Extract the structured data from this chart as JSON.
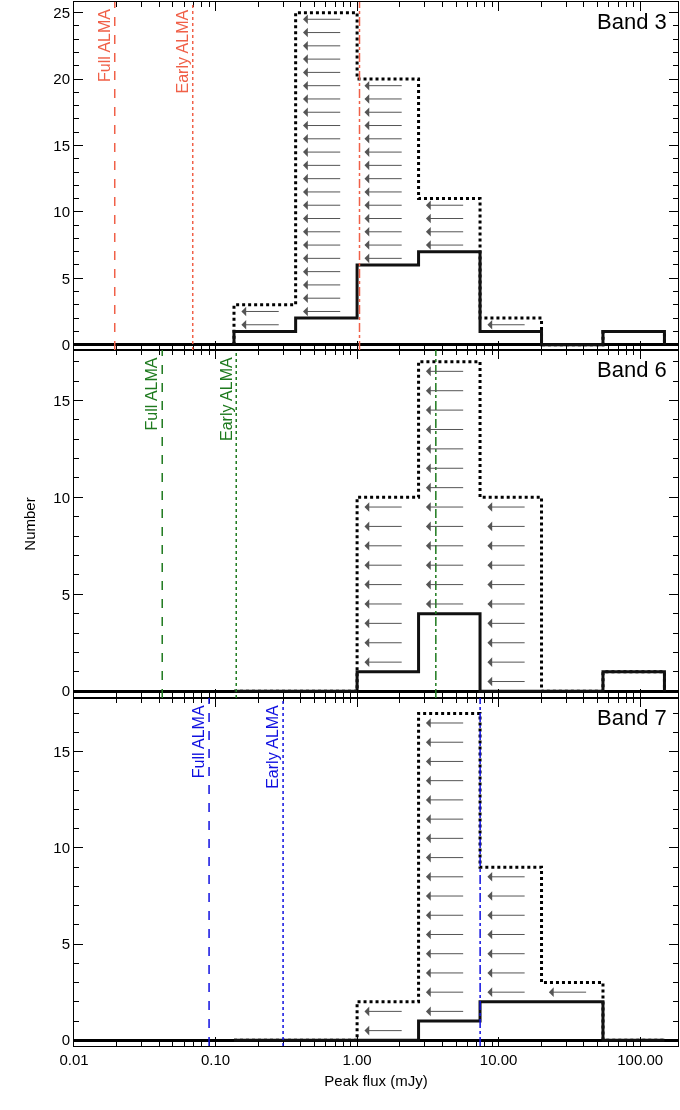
{
  "chart_data": [
    {
      "type": "histogram",
      "annotations": [
        "Band 3"
      ],
      "bins": [
        0.135,
        0.368,
        1.0,
        2.718,
        7.389,
        20.09,
        54.6,
        148.4
      ],
      "log": "x",
      "tick_labels": "y",
      "xlim": [
        0.01,
        185
      ],
      "ylim": [
        -0.4,
        25.8
      ],
      "yticks": [
        0,
        5,
        10,
        15,
        20,
        25
      ],
      "series": [
        {
          "color": "#000000",
          "line_style": "dotted",
          "values": [
            3,
            25,
            20,
            11,
            2,
            0,
            1
          ]
        },
        {
          "color": "#111111",
          "line_style": "solid",
          "values": [
            1,
            2,
            6,
            7,
            1,
            0,
            1
          ]
        }
      ],
      "ref_lines": [
        {
          "axis": "x",
          "value": 0.0194,
          "label": "Full ALMA",
          "color": "#f06048",
          "line_style": "dashed"
        },
        {
          "axis": "x",
          "value": 0.069,
          "label": "Early ALMA",
          "color": "#f06048",
          "line_style": "dotted"
        },
        {
          "axis": "x",
          "value": 1.04,
          "color": "#f06048",
          "line_style": "dashdot"
        }
      ]
    },
    {
      "type": "histogram",
      "ylabel": "Number",
      "annotations": [
        "Band 6"
      ],
      "bins": [
        0.135,
        0.368,
        1.0,
        2.718,
        7.389,
        20.09,
        54.6,
        148.4
      ],
      "log": "x",
      "tick_labels": "y",
      "xlim": [
        0.01,
        185
      ],
      "ylim": [
        -0.35,
        17.6
      ],
      "yticks": [
        0,
        5,
        10,
        15
      ],
      "series": [
        {
          "color": "#000000",
          "line_style": "dotted",
          "values": [
            0,
            0,
            10,
            17,
            10,
            0,
            1
          ]
        },
        {
          "color": "#111111",
          "line_style": "solid",
          "values": [
            0,
            0,
            1,
            4,
            0,
            0,
            1
          ]
        }
      ],
      "ref_lines": [
        {
          "axis": "x",
          "value": 0.042,
          "label": "Full ALMA",
          "color": "#1e7a1e",
          "line_style": "dashed"
        },
        {
          "axis": "x",
          "value": 0.14,
          "label": "Early ALMA",
          "color": "#1e7a1e",
          "line_style": "dotted"
        },
        {
          "axis": "x",
          "value": 3.6,
          "color": "#1e7a1e",
          "line_style": "dashdot"
        }
      ]
    },
    {
      "type": "histogram",
      "xlabel": "Peak flux (mJy)",
      "annotations": [
        "Band 7"
      ],
      "bins": [
        0.135,
        0.368,
        1.0,
        2.718,
        7.389,
        20.09,
        54.6,
        148.4
      ],
      "log": "x",
      "xlim": [
        0.01,
        185
      ],
      "xticks": [
        0.01,
        {
          "value": 0.1,
          "label": "0.10"
        },
        {
          "value": 1,
          "label": "1.00"
        },
        {
          "value": 10,
          "label": "10.00"
        },
        {
          "value": 100,
          "label": "100.00"
        }
      ],
      "ylim": [
        -0.3,
        17.8
      ],
      "yticks": [
        0,
        5,
        10,
        15
      ],
      "series": [
        {
          "color": "#000000",
          "line_style": "dotted",
          "values": [
            0,
            0,
            2,
            17,
            9,
            3,
            0
          ]
        },
        {
          "color": "#111111",
          "line_style": "solid",
          "values": [
            0,
            0,
            0,
            1,
            2,
            2,
            0
          ]
        }
      ],
      "ref_lines": [
        {
          "axis": "x",
          "value": 0.09,
          "label": "Full ALMA",
          "color": "#1010e0",
          "line_style": "dashed"
        },
        {
          "axis": "x",
          "value": 0.3,
          "label": "Early ALMA",
          "color": "#1010e0",
          "line_style": "dotted"
        },
        {
          "axis": "x",
          "value": 7.4,
          "color": "#1010e0",
          "line_style": "dashdot"
        }
      ]
    }
  ]
}
